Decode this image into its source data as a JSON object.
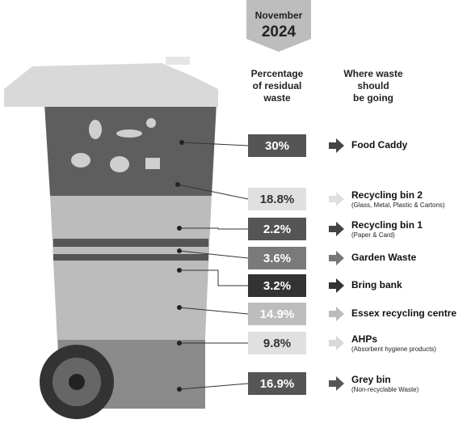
{
  "header": {
    "month": "November",
    "year": "2024"
  },
  "columns": {
    "left": [
      "Percentage",
      "of residual",
      "waste"
    ],
    "right": [
      "Where waste",
      "should",
      "be going"
    ]
  },
  "rows": [
    {
      "percent": "30%",
      "destination": "Food Caddy"
    },
    {
      "percent": "18.8%",
      "destination": "Recycling bin 2",
      "note": "(Glass, Metal, Plastic & Cartons)"
    },
    {
      "percent": "2.2%",
      "destination": "Recycling bin 1",
      "note": "(Paper & Card)"
    },
    {
      "percent": "3.6%",
      "destination": "Garden Waste"
    },
    {
      "percent": "3.2%",
      "destination": "Bring bank"
    },
    {
      "percent": "14.9%",
      "destination": "Essex recycling centre"
    },
    {
      "percent": "9.8%",
      "destination": "AHPs",
      "note": "(Absorbent hygiene products)"
    },
    {
      "percent": "16.9%",
      "destination": "Grey bin",
      "note": "(Non-recyclable Waste)"
    }
  ]
}
